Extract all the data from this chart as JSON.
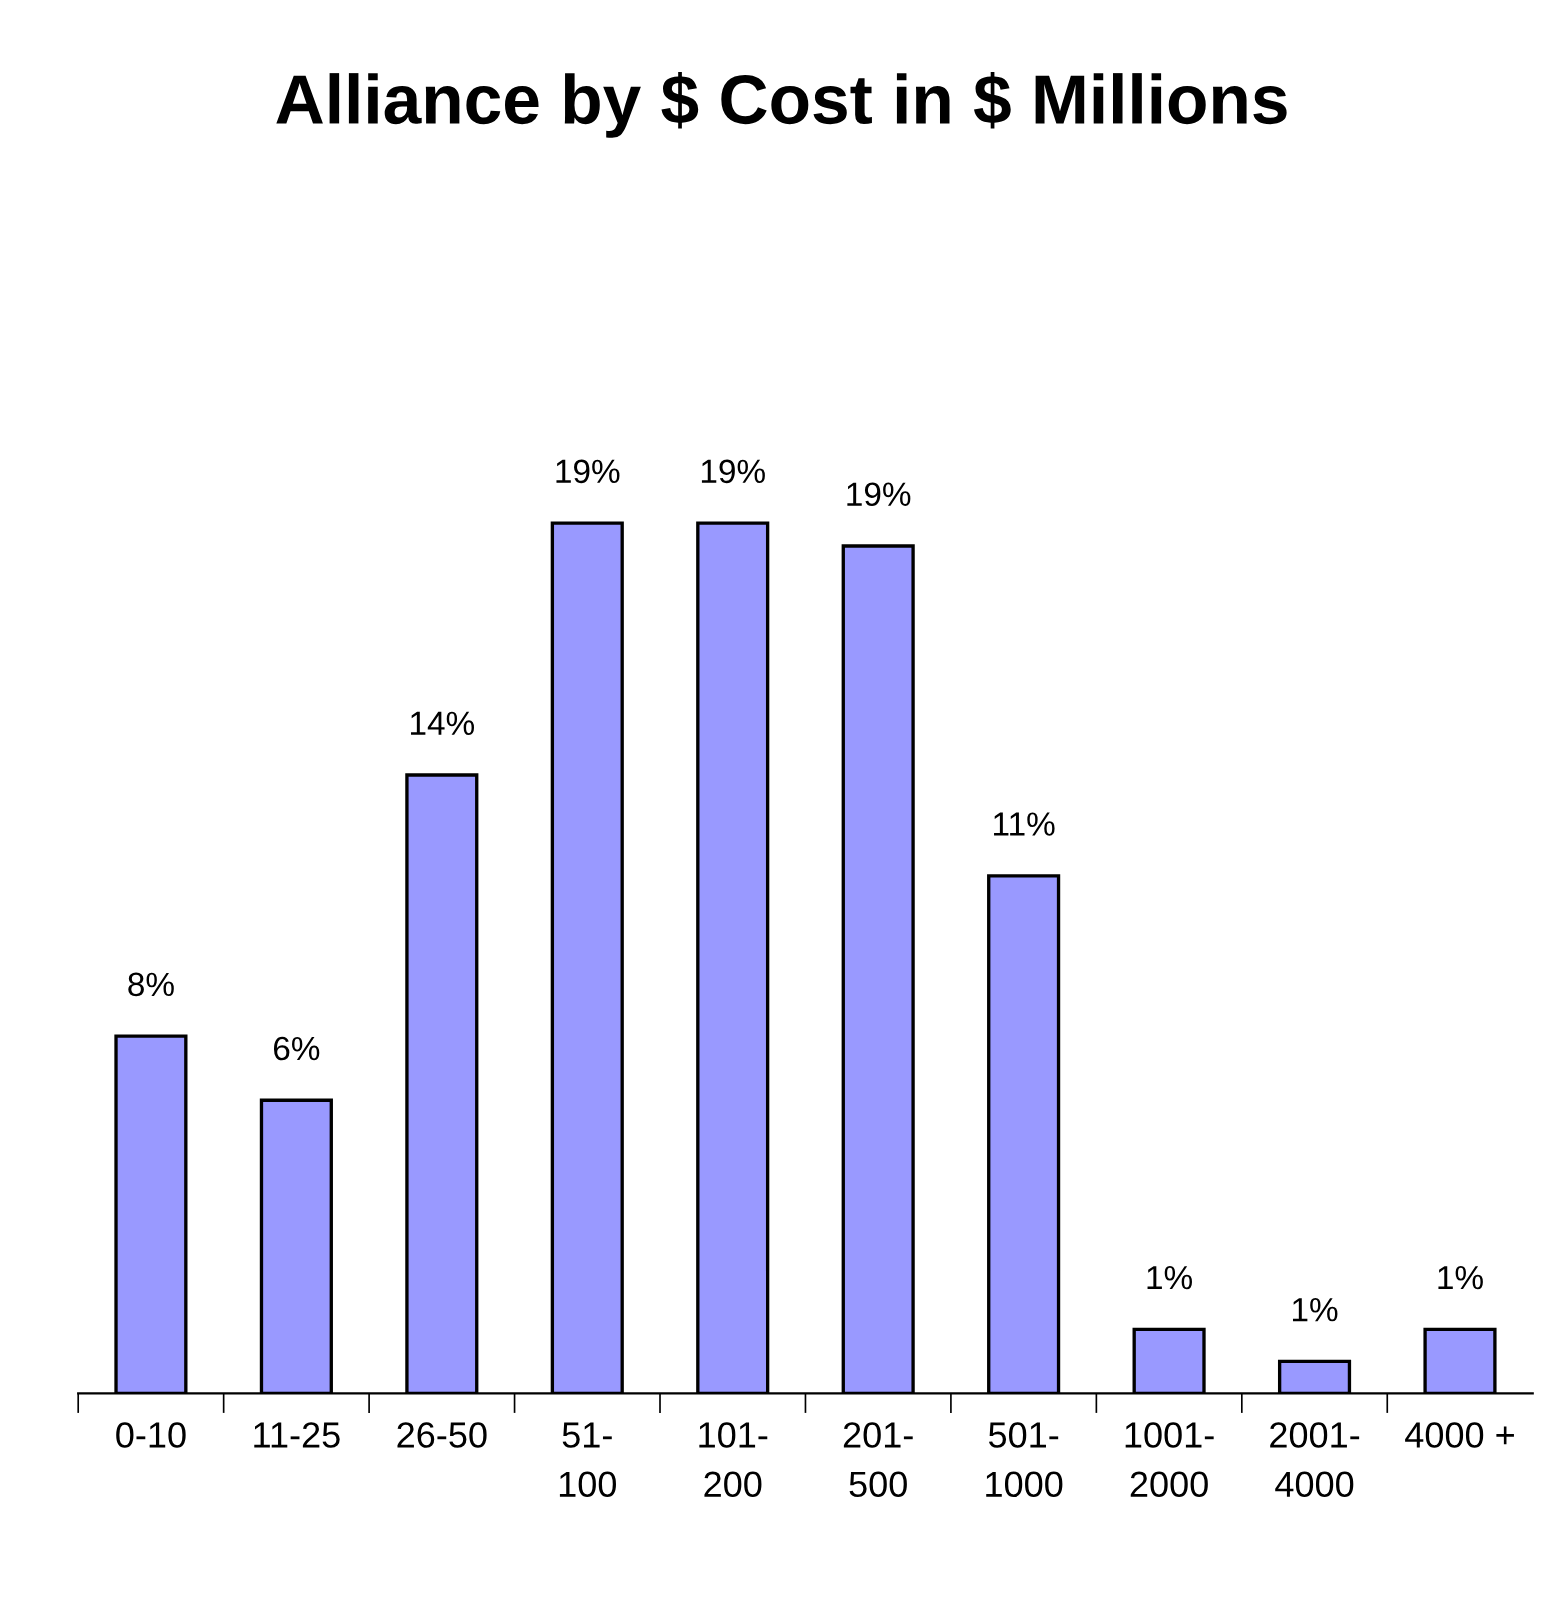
{
  "chart_data": {
    "type": "bar",
    "title": "Alliance by $ Cost in $ Millions",
    "categories": [
      "0-10",
      "11-25",
      "26-50",
      "51-\n100",
      "101-\n200",
      "201-\n500",
      "501-\n1000",
      "1001-\n2000",
      "2001-\n4000",
      "4000 +"
    ],
    "values": [
      7.8,
      6.4,
      13.5,
      19,
      19,
      18.5,
      11.3,
      1.4,
      0.7,
      1.4
    ],
    "value_labels": [
      "8%",
      "6%",
      "14%",
      "19%",
      "19%",
      "19%",
      "11%",
      "1%",
      "1%",
      "1%"
    ],
    "color": "#9999ff",
    "grid": false,
    "legend": false
  }
}
